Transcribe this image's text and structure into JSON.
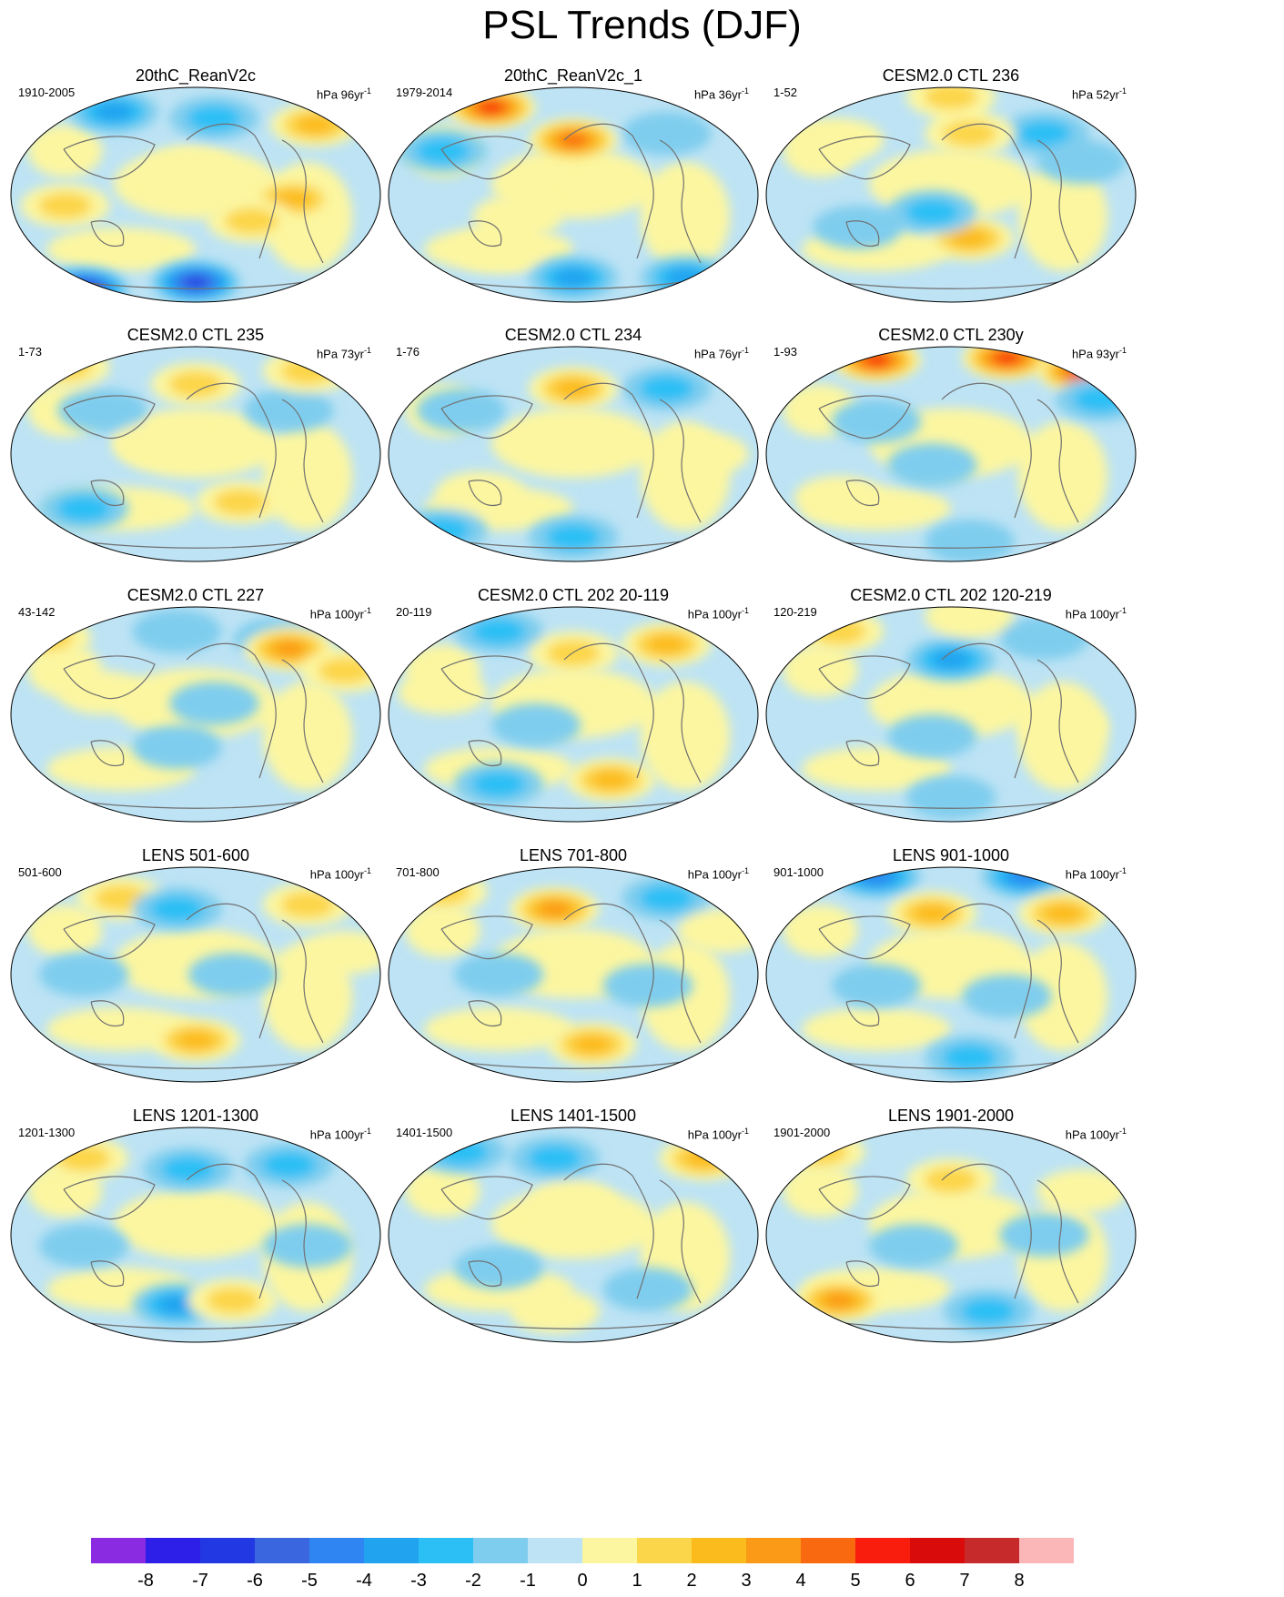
{
  "title": "PSL Trends (DJF)",
  "panels": [
    {
      "title": "20thC_ReanV2c",
      "range": "1910-2005",
      "units": "hPa 96yr",
      "unit_exp": "-1",
      "blobs": [
        [
          0.28,
          0.12,
          -3
        ],
        [
          0.55,
          0.15,
          -2
        ],
        [
          0.82,
          0.18,
          3
        ],
        [
          0.48,
          0.38,
          1
        ],
        [
          0.15,
          0.55,
          2
        ],
        [
          0.5,
          0.9,
          -6
        ],
        [
          0.2,
          0.93,
          -7
        ],
        [
          0.76,
          0.52,
          3
        ],
        [
          0.65,
          0.62,
          2
        ]
      ]
    },
    {
      "title": "20thC_ReanV2c_1",
      "range": "1979-2014",
      "units": "hPa 36yr",
      "unit_exp": "-1",
      "blobs": [
        [
          0.28,
          0.1,
          6
        ],
        [
          0.5,
          0.25,
          5
        ],
        [
          0.15,
          0.3,
          -2
        ],
        [
          0.35,
          0.6,
          1
        ],
        [
          0.5,
          0.88,
          -3
        ],
        [
          0.8,
          0.88,
          -3
        ],
        [
          0.75,
          0.22,
          -1
        ],
        [
          0.3,
          0.75,
          1
        ]
      ]
    },
    {
      "title": "CESM2.0 CTL 236",
      "range": "1-52",
      "units": "hPa 52yr",
      "unit_exp": "-1",
      "blobs": [
        [
          0.5,
          0.05,
          2
        ],
        [
          0.75,
          0.22,
          -2
        ],
        [
          0.55,
          0.22,
          2
        ],
        [
          0.55,
          0.7,
          3
        ],
        [
          0.25,
          0.65,
          -1
        ],
        [
          0.45,
          0.58,
          -2
        ],
        [
          0.85,
          0.35,
          -1
        ],
        [
          0.2,
          0.25,
          1
        ]
      ]
    },
    {
      "title": "CESM2.0 CTL 235",
      "range": "1-73",
      "units": "hPa 73yr",
      "unit_exp": "-1",
      "blobs": [
        [
          0.5,
          0.18,
          2
        ],
        [
          0.15,
          0.1,
          2
        ],
        [
          0.62,
          0.72,
          2
        ],
        [
          0.25,
          0.3,
          -1
        ],
        [
          0.2,
          0.75,
          -2
        ],
        [
          0.75,
          0.3,
          -1
        ],
        [
          0.4,
          0.45,
          1
        ],
        [
          0.8,
          0.12,
          2
        ]
      ]
    },
    {
      "title": "CESM2.0 CTL 234",
      "range": "1-76",
      "units": "hPa 76yr",
      "unit_exp": "-1",
      "blobs": [
        [
          0.5,
          0.2,
          3
        ],
        [
          0.75,
          0.2,
          -2
        ],
        [
          0.5,
          0.88,
          -2
        ],
        [
          0.25,
          0.68,
          1
        ],
        [
          0.2,
          0.3,
          -1
        ],
        [
          0.85,
          0.5,
          1
        ],
        [
          0.15,
          0.85,
          -2
        ]
      ]
    },
    {
      "title": "CESM2.0 CTL 230y",
      "range": "1-93",
      "units": "hPa 93yr",
      "unit_exp": "-1",
      "blobs": [
        [
          0.3,
          0.07,
          6
        ],
        [
          0.65,
          0.06,
          6
        ],
        [
          0.85,
          0.12,
          6
        ],
        [
          0.9,
          0.25,
          -2
        ],
        [
          0.45,
          0.55,
          -1
        ],
        [
          0.2,
          0.7,
          1
        ],
        [
          0.55,
          0.9,
          -1
        ],
        [
          0.3,
          0.35,
          -1
        ]
      ]
    },
    {
      "title": "CESM2.0 CTL 227",
      "range": "43-142",
      "units": "hPa 100yr",
      "unit_exp": "-1",
      "blobs": [
        [
          0.72,
          0.16,
          -3
        ],
        [
          0.75,
          0.2,
          4
        ],
        [
          0.1,
          0.15,
          2
        ],
        [
          0.45,
          0.12,
          -1
        ],
        [
          0.55,
          0.45,
          -1
        ],
        [
          0.45,
          0.65,
          -1
        ],
        [
          0.25,
          0.4,
          1
        ],
        [
          0.9,
          0.3,
          2
        ]
      ]
    },
    {
      "title": "CESM2.0 CTL 202 20-119",
      "range": "20-119",
      "units": "hPa 100yr",
      "unit_exp": "-1",
      "blobs": [
        [
          0.5,
          0.22,
          2
        ],
        [
          0.75,
          0.18,
          3
        ],
        [
          0.3,
          0.12,
          -2
        ],
        [
          0.3,
          0.82,
          -2
        ],
        [
          0.6,
          0.8,
          3
        ],
        [
          0.4,
          0.55,
          -1
        ],
        [
          0.15,
          0.4,
          1
        ]
      ]
    },
    {
      "title": "CESM2.0 CTL 202 120-219",
      "range": "120-219",
      "units": "hPa 100yr",
      "unit_exp": "-1",
      "blobs": [
        [
          0.5,
          0.25,
          -3
        ],
        [
          0.2,
          0.12,
          2
        ],
        [
          0.55,
          0.05,
          1
        ],
        [
          0.75,
          0.15,
          -1
        ],
        [
          0.5,
          0.88,
          -1
        ],
        [
          0.45,
          0.6,
          -1
        ],
        [
          0.8,
          0.55,
          1
        ]
      ]
    },
    {
      "title": "LENS 501-600",
      "range": "501-600",
      "units": "hPa 100yr",
      "unit_exp": "-1",
      "blobs": [
        [
          0.3,
          0.15,
          2
        ],
        [
          0.8,
          0.18,
          2
        ],
        [
          0.45,
          0.2,
          -2
        ],
        [
          0.5,
          0.8,
          3
        ],
        [
          0.6,
          0.5,
          -1
        ],
        [
          0.2,
          0.5,
          -1
        ],
        [
          0.9,
          0.4,
          1
        ]
      ]
    },
    {
      "title": "LENS 701-800",
      "range": "701-800",
      "units": "hPa 100yr",
      "unit_exp": "-1",
      "blobs": [
        [
          0.45,
          0.2,
          4
        ],
        [
          0.75,
          0.15,
          -2
        ],
        [
          0.55,
          0.82,
          3
        ],
        [
          0.15,
          0.12,
          2
        ],
        [
          0.3,
          0.5,
          -1
        ],
        [
          0.7,
          0.55,
          -1
        ],
        [
          0.9,
          0.3,
          1
        ]
      ]
    },
    {
      "title": "LENS 901-1000",
      "range": "901-1000",
      "units": "hPa 100yr",
      "unit_exp": "-1",
      "blobs": [
        [
          0.3,
          0.05,
          -4
        ],
        [
          0.7,
          0.05,
          -4
        ],
        [
          0.45,
          0.22,
          3
        ],
        [
          0.8,
          0.22,
          3
        ],
        [
          0.3,
          0.55,
          -1
        ],
        [
          0.65,
          0.6,
          -1
        ],
        [
          0.55,
          0.88,
          -2
        ]
      ]
    },
    {
      "title": "LENS 1201-1300",
      "range": "1201-1300",
      "units": "hPa 100yr",
      "unit_exp": "-1",
      "blobs": [
        [
          0.48,
          0.2,
          -2
        ],
        [
          0.75,
          0.18,
          -2
        ],
        [
          0.2,
          0.15,
          2
        ],
        [
          0.45,
          0.82,
          -3
        ],
        [
          0.6,
          0.8,
          2
        ],
        [
          0.2,
          0.55,
          -1
        ],
        [
          0.8,
          0.55,
          -1
        ]
      ]
    },
    {
      "title": "LENS 1401-1500",
      "range": "1401-1500",
      "units": "hPa 100yr",
      "unit_exp": "-1",
      "blobs": [
        [
          0.2,
          0.12,
          -2
        ],
        [
          0.45,
          0.15,
          -2
        ],
        [
          0.85,
          0.15,
          3
        ],
        [
          0.5,
          0.35,
          1
        ],
        [
          0.3,
          0.65,
          -1
        ],
        [
          0.7,
          0.75,
          -1
        ],
        [
          0.45,
          0.85,
          1
        ]
      ]
    },
    {
      "title": "LENS 1901-2000",
      "range": "1901-2000",
      "units": "hPa 100yr",
      "unit_exp": "-1",
      "blobs": [
        [
          0.2,
          0.8,
          4
        ],
        [
          0.5,
          0.25,
          2
        ],
        [
          0.15,
          0.12,
          2
        ],
        [
          0.4,
          0.55,
          -1
        ],
        [
          0.75,
          0.5,
          -1
        ],
        [
          0.6,
          0.85,
          -2
        ],
        [
          0.85,
          0.3,
          1
        ]
      ]
    }
  ],
  "colorbar": {
    "ticks": [
      "-8",
      "-7",
      "-6",
      "-5",
      "-4",
      "-3",
      "-2",
      "-1",
      "0",
      "1",
      "2",
      "3",
      "4",
      "5",
      "6",
      "7",
      "8"
    ],
    "colors": [
      "#8a2be2",
      "#2e1fe8",
      "#2238e3",
      "#3a67e0",
      "#2f86f2",
      "#21a3f0",
      "#2bbff5",
      "#7fcdee",
      "#bde3f4",
      "#fcf6a0",
      "#fcd64a",
      "#fcbb1c",
      "#fa9a16",
      "#f96a10",
      "#f81d0d",
      "#da0b0b",
      "#c62a2a",
      "#fbb6b8"
    ]
  }
}
